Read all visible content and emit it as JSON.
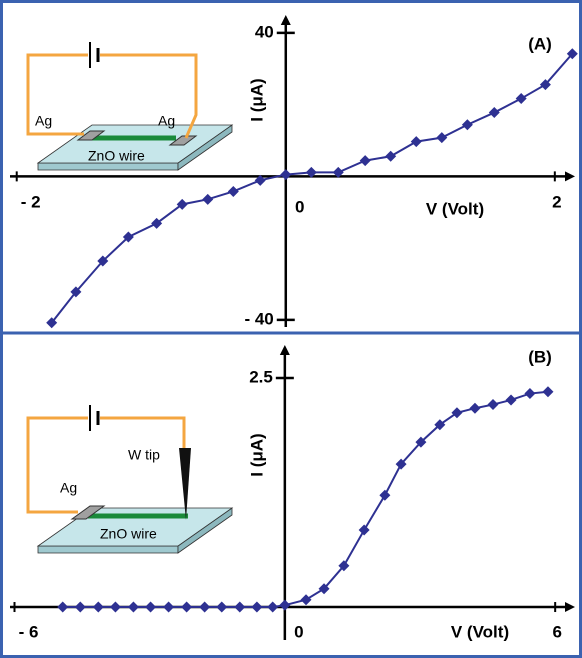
{
  "chart_data": [
    {
      "type": "line",
      "panel_label": "(A)",
      "xlabel": "V (Volt)",
      "ylabel": "I (μA)",
      "color": "#2e3192",
      "x": [
        -1.74,
        -1.56,
        -1.36,
        -1.17,
        -0.96,
        -0.77,
        -0.58,
        -0.39,
        -0.19,
        0,
        0.19,
        0.39,
        0.59,
        0.78,
        0.97,
        1.16,
        1.35,
        1.55,
        1.75,
        1.93,
        2.13
      ],
      "values": [
        -40.8,
        -32.2,
        -23.6,
        -16.9,
        -13.1,
        -7.8,
        -6.4,
        -4.2,
        -1.1,
        0.5,
        1.1,
        1.1,
        4.4,
        5.6,
        9.7,
        10.8,
        14.4,
        17.8,
        21.7,
        25.6,
        34.2
      ],
      "xlim": [
        -2.05,
        2.15
      ],
      "ylim": [
        -42,
        45
      ],
      "xticks": [
        {
          "value": -2,
          "label": "- 2"
        },
        0,
        2
      ],
      "yticks": [
        40,
        {
          "value": -40,
          "label": "- 40"
        }
      ],
      "annotations": [
        "Ag",
        "Ag",
        "ZnO wire"
      ]
    },
    {
      "type": "line",
      "panel_label": "(B)",
      "xlabel": "V (Volt)",
      "ylabel": "I (μA)",
      "color": "#2e3192",
      "x": [
        -4.93,
        -4.54,
        -4.14,
        -3.76,
        -3.36,
        -2.98,
        -2.58,
        -2.18,
        -1.78,
        -1.4,
        -1,
        -0.62,
        -0.27,
        0,
        0.47,
        0.87,
        1.31,
        1.76,
        2.22,
        2.58,
        3.02,
        3.44,
        3.82,
        4.22,
        4.62,
        5.02,
        5.44,
        5.84
      ],
      "values": [
        0,
        0,
        0,
        0,
        0,
        0,
        0,
        0,
        0,
        0,
        0,
        0,
        0,
        0.02,
        0.08,
        0.2,
        0.45,
        0.84,
        1.22,
        1.56,
        1.8,
        1.99,
        2.12,
        2.17,
        2.21,
        2.26,
        2.33,
        2.35
      ],
      "xlim": [
        -6.1,
        6.44
      ],
      "ylim": [
        -0.36,
        2.86
      ],
      "xticks": [
        {
          "value": -6,
          "label": "- 6"
        },
        0,
        6
      ],
      "yticks": [
        2.5
      ],
      "annotations": [
        "W tip",
        "Ag",
        "ZnO wire"
      ]
    }
  ]
}
